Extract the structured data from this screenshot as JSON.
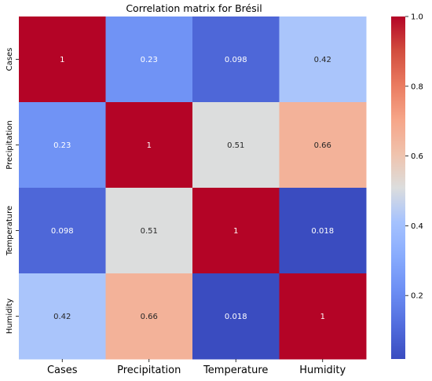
{
  "chart_data": {
    "type": "heatmap",
    "title": "Correlation matrix for Brésil",
    "row_labels": [
      "Cases",
      "Precipitation",
      "Temperature",
      "Humidity"
    ],
    "col_labels": [
      "Cases",
      "Precipitation",
      "Temperature",
      "Humidity"
    ],
    "values": [
      [
        1,
        0.23,
        0.098,
        0.42
      ],
      [
        0.23,
        1,
        0.51,
        0.66
      ],
      [
        0.098,
        0.51,
        1,
        0.018
      ],
      [
        0.42,
        0.66,
        0.018,
        1
      ]
    ],
    "value_labels": [
      [
        "1",
        "0.23",
        "0.098",
        "0.42"
      ],
      [
        "0.23",
        "1",
        "0.51",
        "0.66"
      ],
      [
        "0.098",
        "0.51",
        "1",
        "0.018"
      ],
      [
        "0.42",
        "0.66",
        "0.018",
        "1"
      ]
    ],
    "colormap": "coolwarm",
    "color_min": "#3b4cc0",
    "color_max": "#b40426",
    "colorbar": {
      "range": [
        0.018,
        1.0
      ],
      "ticks": [
        0.2,
        0.4,
        0.6,
        0.8,
        1.0
      ],
      "tick_labels": [
        "0.2",
        "0.4",
        "0.6",
        "0.8",
        "1.0"
      ]
    }
  }
}
